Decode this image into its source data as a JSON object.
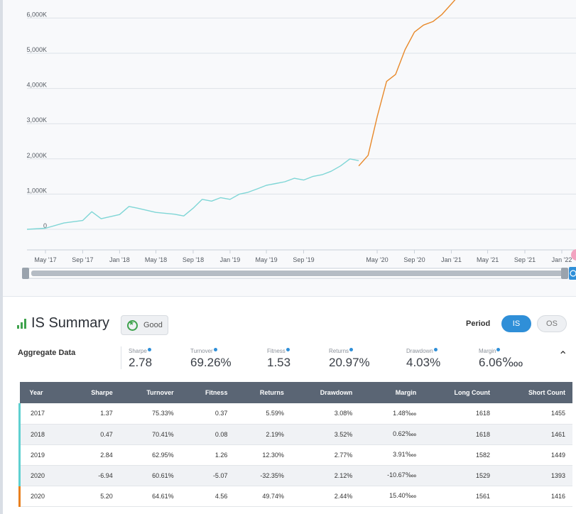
{
  "chart_data": {
    "type": "line",
    "y_ticks": [
      "0",
      "1,000K",
      "2,000K",
      "3,000K",
      "4,000K",
      "5,000K",
      "6,000K"
    ],
    "ylim": [
      0,
      6500
    ],
    "x_ticks": [
      "May '17",
      "Sep '17",
      "Jan '18",
      "May '18",
      "Sep '18",
      "Jan '19",
      "May '19",
      "Sep '19",
      "May '20",
      "Sep '20",
      "Jan '21",
      "May '21",
      "Sep '21",
      "Jan '22"
    ],
    "grid": true,
    "series": [
      {
        "period": "IS",
        "color": "#7fd6d6",
        "x": [
          "2017-03",
          "2017-05",
          "2017-07",
          "2017-09",
          "2017-10",
          "2017-11",
          "2018-01",
          "2018-02",
          "2018-03",
          "2018-05",
          "2018-07",
          "2018-08",
          "2018-09",
          "2018-10",
          "2018-11",
          "2018-12",
          "2019-01",
          "2019-02",
          "2019-03",
          "2019-04",
          "2019-05",
          "2019-06",
          "2019-07",
          "2019-08",
          "2019-09",
          "2019-10",
          "2019-11",
          "2019-12",
          "2020-01",
          "2020-02",
          "2020-03"
        ],
        "y": [
          0,
          30,
          180,
          250,
          500,
          300,
          420,
          650,
          600,
          480,
          430,
          380,
          600,
          850,
          800,
          900,
          850,
          1000,
          1050,
          1150,
          1250,
          1300,
          1350,
          1450,
          1400,
          1500,
          1550,
          1650,
          1800,
          2000,
          1950
        ]
      },
      {
        "period": "OS",
        "color": "#e8892a",
        "x": [
          "2020-03",
          "2020-04",
          "2020-05",
          "2020-06",
          "2020-07",
          "2020-08",
          "2020-09",
          "2020-10",
          "2020-11",
          "2020-12",
          "2021-01",
          "2021-02"
        ],
        "y": [
          1800,
          2100,
          3200,
          4200,
          4400,
          5100,
          5600,
          5800,
          5900,
          6100,
          6400,
          6700
        ]
      }
    ]
  },
  "summary": {
    "title": "IS Summary",
    "badge": "Good",
    "period_label": "Period",
    "toggle_is": "IS",
    "toggle_os": "OS",
    "aggregate_label": "Aggregate Data",
    "metrics": [
      {
        "label": "Sharpe",
        "value": "2.78"
      },
      {
        "label": "Turnover",
        "value": "69.26%"
      },
      {
        "label": "Fitness",
        "value": "1.53"
      },
      {
        "label": "Returns",
        "value": "20.97%"
      },
      {
        "label": "Drawdown",
        "value": "4.03%"
      },
      {
        "label": "Margin",
        "value": "6.06‱"
      }
    ],
    "columns": [
      "Year",
      "Sharpe",
      "Turnover",
      "Fitness",
      "Returns",
      "Drawdown",
      "Margin",
      "Long Count",
      "Short Count"
    ],
    "rows": [
      [
        "2017",
        "1.37",
        "75.33%",
        "0.37",
        "5.59%",
        "3.08%",
        "1.48‱",
        "1618",
        "1455"
      ],
      [
        "2018",
        "0.47",
        "70.41%",
        "0.08",
        "2.19%",
        "3.52%",
        "0.62‱",
        "1618",
        "1461"
      ],
      [
        "2019",
        "2.84",
        "62.95%",
        "1.26",
        "12.30%",
        "2.77%",
        "3.91‱",
        "1582",
        "1449"
      ],
      [
        "2020",
        "-6.94",
        "60.61%",
        "-5.07",
        "-32.35%",
        "2.12%",
        "-10.67‱",
        "1529",
        "1393"
      ],
      [
        "2020",
        "5.20",
        "64.61%",
        "4.56",
        "49.74%",
        "2.44%",
        "15.40‱",
        "1561",
        "1416"
      ]
    ]
  }
}
